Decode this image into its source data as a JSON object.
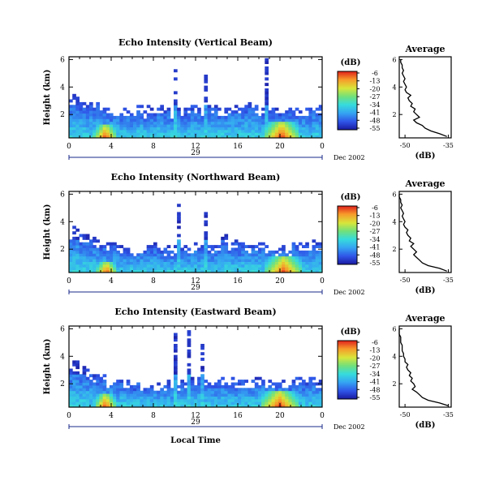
{
  "chart_data": [
    {
      "type": "heatmap",
      "title": "Echo Intensity (Vertical Beam)",
      "ylabel": "Height (km)",
      "xlabel": "",
      "date_label": "Dec 2002",
      "day_label": "29",
      "x_ticks": [
        "0",
        "4",
        "8",
        "12",
        "16",
        "20",
        "0"
      ],
      "y_ticks": [
        "6",
        "4",
        "2"
      ],
      "xlim": [
        0,
        24
      ],
      "ylim": [
        0.3,
        6.2
      ],
      "colorbar": {
        "unit": "(dB)",
        "ticks": [
          "-6",
          "-13",
          "-20",
          "-27",
          "-34",
          "-41",
          "-48",
          "-55"
        ]
      },
      "cloud_top_km": [
        3.1,
        3.0,
        2.8,
        2.6,
        2.4,
        2.3,
        2.3,
        2.4,
        2.4,
        2.3,
        2.3,
        2.4,
        2.5,
        2.5,
        2.5,
        2.5,
        2.6,
        2.6,
        2.5,
        2.5,
        2.4,
        2.3,
        2.4,
        2.5,
        2.5
      ],
      "plumes": [
        {
          "t0": 0.2,
          "t1": 0.9,
          "top": 3.4
        },
        {
          "t0": 1.2,
          "t1": 1.6,
          "top": 2.9
        },
        {
          "t0": 9.8,
          "t1": 10.2,
          "top": 5.7
        },
        {
          "t0": 12.6,
          "t1": 13.0,
          "top": 4.8
        },
        {
          "t0": 18.3,
          "t1": 18.7,
          "top": 6.0
        }
      ],
      "hotspots": [
        {
          "t": 3.3,
          "w": 2.2,
          "h": 0.8,
          "db": -8
        },
        {
          "t": 20.0,
          "w": 3.4,
          "h": 1.0,
          "db": -7
        }
      ],
      "profile": {
        "title": "Average",
        "xlabel": "(dB)",
        "x_ticks": [
          "-50",
          "-35"
        ],
        "y_ticks": [
          "6",
          "4",
          "2"
        ],
        "xlim": [
          -52,
          -34
        ],
        "ylim": [
          0.3,
          6.2
        ],
        "height_km": [
          0.4,
          0.6,
          0.8,
          1.0,
          1.2,
          1.4,
          1.6,
          1.8,
          2.0,
          2.2,
          2.4,
          2.6,
          2.8,
          3.0,
          3.2,
          3.4,
          3.6,
          3.8,
          4.0,
          4.2,
          4.4,
          4.6,
          4.8,
          5.0,
          5.2,
          5.4,
          5.6,
          5.8,
          6.0
        ],
        "db": [
          -35.5,
          -38,
          -41,
          -43,
          -44,
          -46,
          -47,
          -45,
          -46,
          -47,
          -46.5,
          -48,
          -47.5,
          -48.5,
          -49,
          -48,
          -49.5,
          -50,
          -49.5,
          -50,
          -50.5,
          -50,
          -50.5,
          -51,
          -50.5,
          -51,
          -51,
          -51.5,
          -51.5
        ]
      }
    },
    {
      "type": "heatmap",
      "title": "Echo Intensity (Northward Beam)",
      "ylabel": "Height (km)",
      "xlabel": "",
      "date_label": "Dec 2002",
      "day_label": "29",
      "x_ticks": [
        "0",
        "4",
        "8",
        "12",
        "16",
        "20",
        "0"
      ],
      "y_ticks": [
        "6",
        "4",
        "2"
      ],
      "xlim": [
        0,
        24
      ],
      "ylim": [
        0.3,
        6.2
      ],
      "colorbar": {
        "unit": "(dB)",
        "ticks": [
          "-6",
          "-13",
          "-20",
          "-27",
          "-34",
          "-41",
          "-48",
          "-55"
        ]
      },
      "cloud_top_km": [
        3.2,
        3.0,
        2.8,
        2.5,
        2.4,
        2.2,
        2.1,
        2.1,
        2.2,
        2.1,
        2.1,
        2.2,
        2.3,
        2.3,
        2.3,
        2.4,
        2.4,
        2.4,
        2.3,
        2.3,
        2.2,
        2.2,
        2.3,
        2.4,
        2.4
      ],
      "plumes": [
        {
          "t0": 0.2,
          "t1": 0.8,
          "top": 3.6
        },
        {
          "t0": 1.0,
          "t1": 1.6,
          "top": 3.0
        },
        {
          "t0": 10.0,
          "t1": 10.3,
          "top": 5.6
        },
        {
          "t0": 12.6,
          "t1": 13.0,
          "top": 4.6
        },
        {
          "t0": 14.4,
          "t1": 14.8,
          "top": 3.0
        }
      ],
      "hotspots": [
        {
          "t": 3.4,
          "w": 2.0,
          "h": 0.7,
          "db": -9
        },
        {
          "t": 20.2,
          "w": 3.6,
          "h": 1.0,
          "db": -8
        }
      ],
      "profile": {
        "title": "Average",
        "xlabel": "(dB)",
        "x_ticks": [
          "-50",
          "-35"
        ],
        "y_ticks": [
          "6",
          "4",
          "2"
        ],
        "xlim": [
          -52,
          -34
        ],
        "ylim": [
          0.3,
          6.2
        ],
        "height_km": [
          0.4,
          0.6,
          0.8,
          1.0,
          1.2,
          1.4,
          1.6,
          1.8,
          2.0,
          2.2,
          2.4,
          2.6,
          2.8,
          3.0,
          3.2,
          3.4,
          3.6,
          3.8,
          4.0,
          4.2,
          4.4,
          4.6,
          4.8,
          5.0,
          5.2,
          5.4,
          5.6,
          5.8,
          6.0
        ],
        "db": [
          -35.5,
          -38,
          -42,
          -44,
          -45,
          -46,
          -47,
          -46,
          -47,
          -48,
          -47,
          -48.5,
          -48,
          -49,
          -49.5,
          -49,
          -50,
          -50.5,
          -50,
          -50.5,
          -51,
          -50.5,
          -51,
          -51.5,
          -51,
          -51.5,
          -51.5,
          -52,
          -52
        ]
      }
    },
    {
      "type": "heatmap",
      "title": "Echo Intensity (Eastward Beam)",
      "ylabel": "Height (km)",
      "xlabel": "Local Time",
      "date_label": "Dec 2002",
      "day_label": "29",
      "x_ticks": [
        "0",
        "4",
        "8",
        "12",
        "16",
        "20",
        "0"
      ],
      "y_ticks": [
        "6",
        "4",
        "2"
      ],
      "xlim": [
        0,
        24
      ],
      "ylim": [
        0.3,
        6.2
      ],
      "colorbar": {
        "unit": "(dB)",
        "ticks": [
          "-6",
          "-13",
          "-20",
          "-27",
          "-34",
          "-41",
          "-48",
          "-55"
        ]
      },
      "cloud_top_km": [
        3.4,
        3.1,
        2.8,
        2.5,
        2.3,
        2.2,
        2.1,
        2.1,
        2.1,
        2.1,
        2.0,
        2.1,
        2.2,
        2.2,
        2.2,
        2.3,
        2.3,
        2.3,
        2.3,
        2.2,
        2.2,
        2.2,
        2.3,
        2.4,
        2.4
      ],
      "plumes": [
        {
          "t0": 0.2,
          "t1": 0.8,
          "top": 3.7
        },
        {
          "t0": 1.0,
          "t1": 1.4,
          "top": 3.2
        },
        {
          "t0": 9.8,
          "t1": 10.2,
          "top": 5.6
        },
        {
          "t0": 11.0,
          "t1": 11.4,
          "top": 5.9
        },
        {
          "t0": 12.4,
          "t1": 12.8,
          "top": 4.8
        }
      ],
      "hotspots": [
        {
          "t": 3.3,
          "w": 2.0,
          "h": 0.8,
          "db": -8
        },
        {
          "t": 19.8,
          "w": 3.6,
          "h": 1.0,
          "db": -7
        }
      ],
      "profile": {
        "title": "Average",
        "xlabel": "(dB)",
        "x_ticks": [
          "-50",
          "-35"
        ],
        "y_ticks": [
          "6",
          "4",
          "2"
        ],
        "xlim": [
          -52,
          -34
        ],
        "ylim": [
          0.3,
          6.2
        ],
        "height_km": [
          0.4,
          0.6,
          0.8,
          1.0,
          1.2,
          1.4,
          1.6,
          1.8,
          2.0,
          2.2,
          2.4,
          2.6,
          2.8,
          3.0,
          3.2,
          3.4,
          3.6,
          3.8,
          4.0,
          4.2,
          4.4,
          4.6,
          4.8,
          5.0,
          5.2,
          5.4,
          5.6,
          5.8,
          6.0
        ],
        "db": [
          -35,
          -38,
          -42,
          -44,
          -45,
          -46,
          -47.5,
          -46.5,
          -47,
          -48,
          -47.5,
          -48.5,
          -48,
          -49,
          -49.5,
          -49,
          -50,
          -50,
          -50.5,
          -50.5,
          -51,
          -51,
          -51,
          -51.5,
          -51.5,
          -51.5,
          -52,
          -52,
          -52
        ]
      }
    }
  ]
}
